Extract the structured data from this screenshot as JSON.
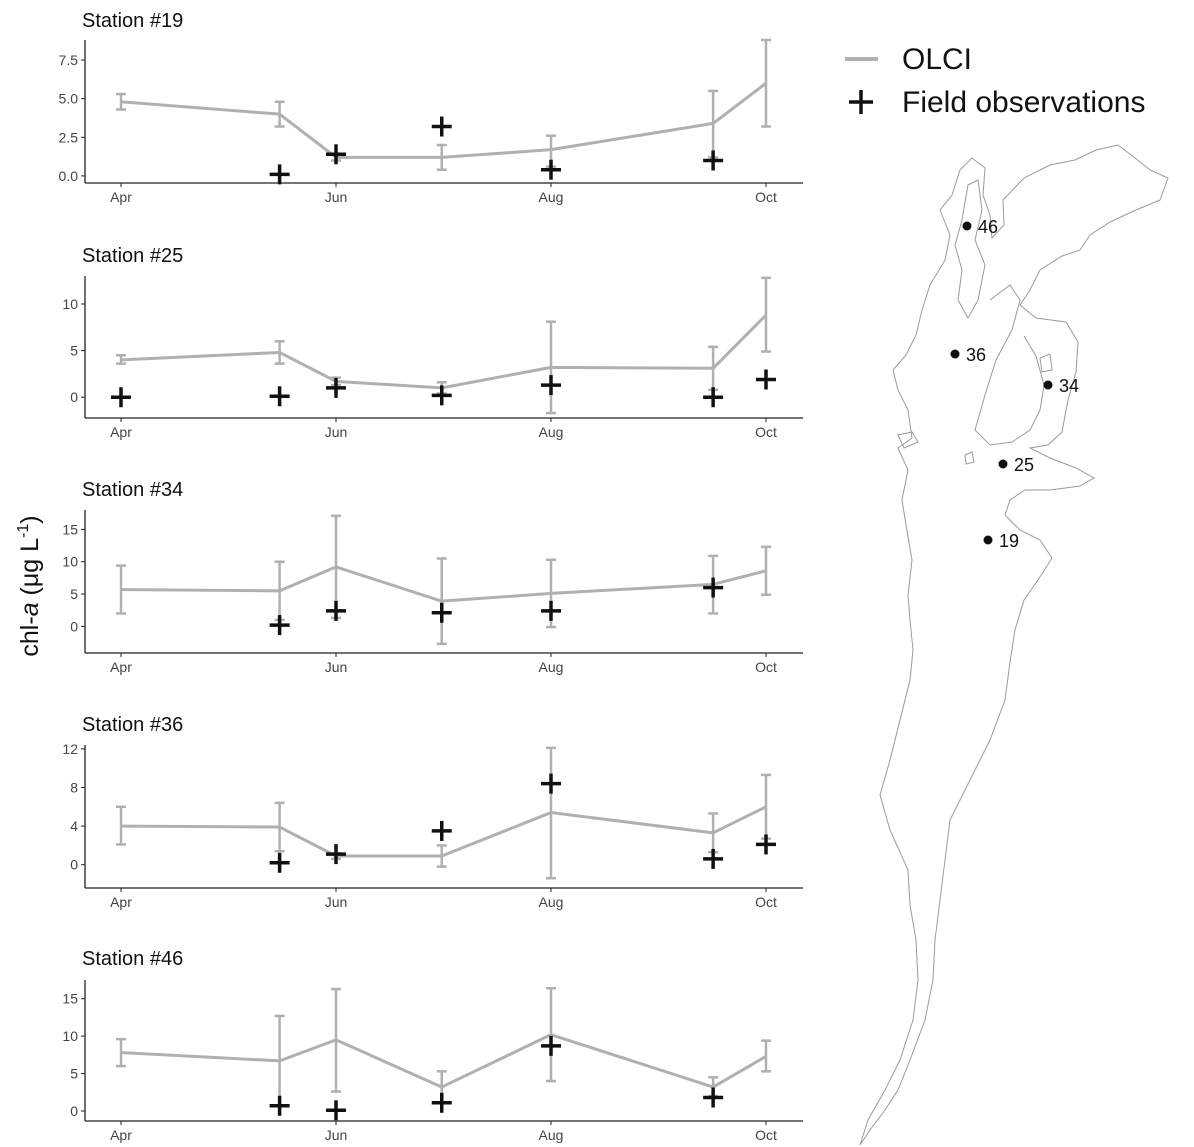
{
  "figure": {
    "ylabel_main": "chl-",
    "ylabel_italic": "a",
    "ylabel_unit": " (μg L",
    "ylabel_exp": "-1",
    "ylabel_close": ")"
  },
  "legend": {
    "olci_label": "OLCI",
    "field_label": "Field observations",
    "olci_color": "#b0b0b0",
    "field_color": "#111111"
  },
  "map": {
    "stations": [
      {
        "label": "46"
      },
      {
        "label": "36"
      },
      {
        "label": "34"
      },
      {
        "label": "25"
      },
      {
        "label": "19"
      }
    ]
  },
  "chart_data": [
    {
      "type": "line",
      "title": "Station #19",
      "x_ticks": [
        "Apr",
        "Jun",
        "Aug",
        "Oct"
      ],
      "xlim": [
        "2019-04-01",
        "2019-10-01"
      ],
      "ylim": [
        -0.2,
        8.8
      ],
      "y_ticks": [
        "0.0",
        "2.5",
        "5.0",
        "7.5"
      ],
      "y_tick_values": [
        0,
        2.5,
        5,
        7.5
      ],
      "series": [
        {
          "name": "OLCI",
          "x": [
            "2019-04-01",
            "2019-05-16",
            "2019-06-01",
            "2019-07-01",
            "2019-08-01",
            "2019-09-16",
            "2019-10-01"
          ],
          "y": [
            4.8,
            4.0,
            1.2,
            1.2,
            1.7,
            3.4,
            6.0
          ],
          "err_low": [
            4.3,
            3.2,
            1.0,
            0.4,
            0.6,
            1.2,
            3.2
          ],
          "err_high": [
            5.3,
            4.8,
            1.4,
            2.0,
            2.6,
            5.5,
            8.8
          ]
        },
        {
          "name": "Field observations",
          "x": [
            "2019-05-16",
            "2019-06-01",
            "2019-07-01",
            "2019-08-01",
            "2019-09-16"
          ],
          "y": [
            0.1,
            1.4,
            3.2,
            0.4,
            1.0
          ]
        }
      ]
    },
    {
      "type": "line",
      "title": "Station #25",
      "x_ticks": [
        "Apr",
        "Jun",
        "Aug",
        "Oct"
      ],
      "xlim": [
        "2019-04-01",
        "2019-10-01"
      ],
      "ylim": [
        -1.8,
        13
      ],
      "y_ticks": [
        "0",
        "5",
        "10"
      ],
      "y_tick_values": [
        0,
        5,
        10
      ],
      "series": [
        {
          "name": "OLCI",
          "x": [
            "2019-04-01",
            "2019-05-16",
            "2019-06-01",
            "2019-07-01",
            "2019-08-01",
            "2019-09-16",
            "2019-10-01"
          ],
          "y": [
            4.0,
            4.8,
            1.7,
            1.0,
            3.2,
            3.1,
            8.8
          ],
          "err_low": [
            3.6,
            3.6,
            1.3,
            0.4,
            -1.7,
            0.8,
            4.9
          ],
          "err_high": [
            4.5,
            6.0,
            2.1,
            1.6,
            8.1,
            5.4,
            12.8
          ]
        },
        {
          "name": "Field observations",
          "x": [
            "2019-04-01",
            "2019-05-16",
            "2019-06-01",
            "2019-07-01",
            "2019-08-01",
            "2019-09-16",
            "2019-10-01"
          ],
          "y": [
            0.0,
            0.1,
            1.0,
            0.2,
            1.3,
            0.0,
            1.9
          ]
        }
      ]
    },
    {
      "type": "line",
      "title": "Station #34",
      "x_ticks": [
        "Apr",
        "Jun",
        "Aug",
        "Oct"
      ],
      "xlim": [
        "2019-04-01",
        "2019-10-01"
      ],
      "ylim": [
        -3.5,
        18
      ],
      "y_ticks": [
        "0",
        "5",
        "10",
        "15"
      ],
      "y_tick_values": [
        0,
        5,
        10,
        15
      ],
      "series": [
        {
          "name": "OLCI",
          "x": [
            "2019-04-01",
            "2019-05-16",
            "2019-06-01",
            "2019-07-01",
            "2019-08-01",
            "2019-09-16",
            "2019-10-01"
          ],
          "y": [
            5.7,
            5.5,
            9.2,
            3.9,
            5.1,
            6.5,
            8.6
          ],
          "err_low": [
            2.0,
            1.0,
            1.3,
            -2.7,
            -0.1,
            2.0,
            4.9
          ],
          "err_high": [
            9.4,
            10.0,
            17.1,
            10.5,
            10.3,
            10.9,
            12.3
          ]
        },
        {
          "name": "Field observations",
          "x": [
            "2019-05-16",
            "2019-06-01",
            "2019-07-01",
            "2019-08-01",
            "2019-09-16"
          ],
          "y": [
            0.2,
            2.4,
            2.1,
            2.4,
            6.0
          ]
        }
      ]
    },
    {
      "type": "line",
      "title": "Station #36",
      "x_ticks": [
        "Apr",
        "Jun",
        "Aug",
        "Oct"
      ],
      "xlim": [
        "2019-04-01",
        "2019-10-01"
      ],
      "ylim": [
        -2.0,
        12.4
      ],
      "y_ticks": [
        "0",
        "4",
        "8",
        "12"
      ],
      "y_tick_values": [
        0,
        4,
        8,
        12
      ],
      "series": [
        {
          "name": "OLCI",
          "x": [
            "2019-04-01",
            "2019-05-16",
            "2019-06-01",
            "2019-07-01",
            "2019-08-01",
            "2019-09-16",
            "2019-10-01"
          ],
          "y": [
            4.0,
            3.9,
            0.9,
            0.9,
            5.4,
            3.3,
            6.0
          ],
          "err_low": [
            2.1,
            1.4,
            0.6,
            -0.2,
            -1.4,
            1.3,
            2.7
          ],
          "err_high": [
            6.0,
            6.4,
            1.2,
            2.0,
            12.1,
            5.3,
            9.3
          ]
        },
        {
          "name": "Field observations",
          "x": [
            "2019-05-16",
            "2019-06-01",
            "2019-07-01",
            "2019-08-01",
            "2019-09-16",
            "2019-10-01"
          ],
          "y": [
            0.2,
            1.1,
            3.5,
            8.4,
            0.6,
            2.1
          ]
        }
      ]
    },
    {
      "type": "line",
      "title": "Station #46",
      "x_ticks": [
        "Apr",
        "Jun",
        "Aug",
        "Oct"
      ],
      "xlim": [
        "2019-04-01",
        "2019-10-01"
      ],
      "ylim": [
        -0.8,
        17.5
      ],
      "y_ticks": [
        "0",
        "5",
        "10",
        "15"
      ],
      "y_tick_values": [
        0,
        5,
        10,
        15
      ],
      "series": [
        {
          "name": "OLCI",
          "x": [
            "2019-04-01",
            "2019-05-16",
            "2019-06-01",
            "2019-07-01",
            "2019-08-01",
            "2019-09-16",
            "2019-10-01"
          ],
          "y": [
            7.8,
            6.7,
            9.5,
            3.2,
            10.2,
            3.2,
            7.3
          ],
          "err_low": [
            6.0,
            0.7,
            2.6,
            1.1,
            4.0,
            2.0,
            5.3
          ],
          "err_high": [
            9.6,
            12.7,
            16.3,
            5.3,
            16.4,
            4.5,
            9.4
          ]
        },
        {
          "name": "Field observations",
          "x": [
            "2019-05-16",
            "2019-06-01",
            "2019-07-01",
            "2019-08-01",
            "2019-09-16"
          ],
          "y": [
            0.7,
            0.1,
            1.1,
            8.7,
            1.8
          ]
        }
      ]
    }
  ]
}
